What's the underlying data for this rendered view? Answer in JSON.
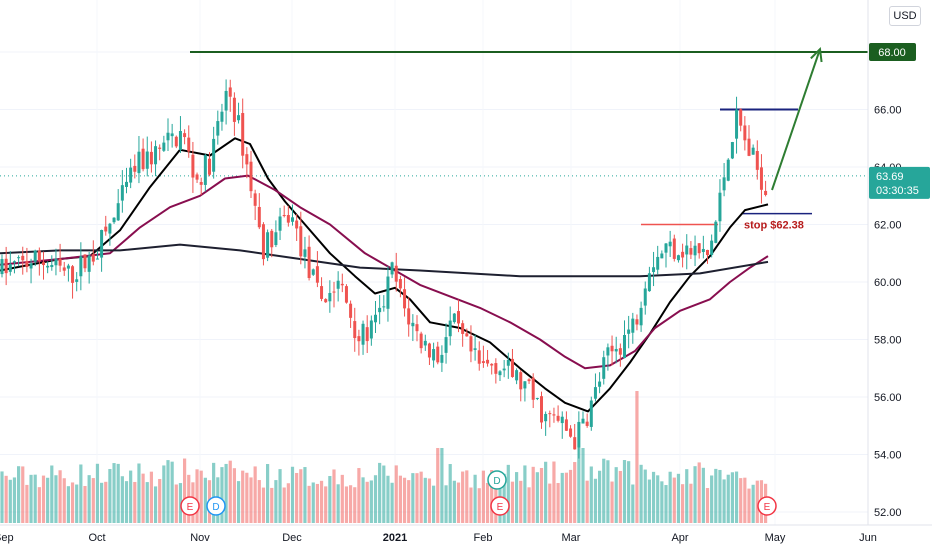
{
  "currency": "USD",
  "chart_data": {
    "type": "candlestick",
    "y_axis": {
      "range": [
        51.6,
        69.4
      ],
      "ticks": [
        "52.00",
        "54.00",
        "56.00",
        "58.00",
        "60.00",
        "62.00",
        "64.00",
        "66.00",
        "68.00"
      ]
    },
    "x_axis": {
      "ticks": [
        "Sep",
        "Oct",
        "Nov",
        "Dec",
        "2021",
        "Feb",
        "Mar",
        "Apr",
        "May",
        "Jun"
      ],
      "bold": [
        "2021"
      ]
    },
    "price_path": [
      [
        0,
        60.4
      ],
      [
        40,
        60.8
      ],
      [
        70,
        60.2
      ],
      [
        95,
        61.0
      ],
      [
        115,
        62.3
      ],
      [
        135,
        64.0
      ],
      [
        160,
        64.6
      ],
      [
        182,
        65.2
      ],
      [
        196,
        63.5
      ],
      [
        210,
        64.2
      ],
      [
        228,
        66.8
      ],
      [
        240,
        65.2
      ],
      [
        252,
        63.2
      ],
      [
        262,
        61.2
      ],
      [
        275,
        61.6
      ],
      [
        290,
        62.4
      ],
      [
        305,
        60.8
      ],
      [
        320,
        59.4
      ],
      [
        340,
        59.9
      ],
      [
        360,
        58.0
      ],
      [
        378,
        58.6
      ],
      [
        392,
        60.4
      ],
      [
        405,
        59.0
      ],
      [
        420,
        58.0
      ],
      [
        438,
        57.4
      ],
      [
        452,
        58.6
      ],
      [
        465,
        57.8
      ],
      [
        480,
        57.0
      ],
      [
        495,
        57.2
      ],
      [
        512,
        56.8
      ],
      [
        528,
        56.2
      ],
      [
        545,
        55.3
      ],
      [
        560,
        55.1
      ],
      [
        575,
        54.5
      ],
      [
        590,
        55.6
      ],
      [
        605,
        57.2
      ],
      [
        620,
        57.9
      ],
      [
        635,
        58.6
      ],
      [
        648,
        60.6
      ],
      [
        665,
        61.2
      ],
      [
        680,
        61.2
      ],
      [
        695,
        61.0
      ],
      [
        708,
        60.9
      ],
      [
        718,
        62.4
      ],
      [
        728,
        64.6
      ],
      [
        737,
        65.7
      ],
      [
        748,
        64.6
      ],
      [
        758,
        63.9
      ],
      [
        768,
        63.1
      ]
    ],
    "volume_path": [
      [
        0,
        0.5
      ],
      [
        100,
        0.55
      ],
      [
        200,
        0.6
      ],
      [
        300,
        0.5
      ],
      [
        400,
        0.55
      ],
      [
        500,
        0.5
      ],
      [
        600,
        0.6
      ],
      [
        700,
        0.55
      ],
      [
        768,
        0.45
      ]
    ],
    "moving_averages": [
      {
        "color": "#000000",
        "points": [
          [
            0,
            60.4
          ],
          [
            60,
            60.8
          ],
          [
            90,
            60.9
          ],
          [
            120,
            61.8
          ],
          [
            150,
            63.3
          ],
          [
            180,
            64.6
          ],
          [
            210,
            64.4
          ],
          [
            235,
            65.0
          ],
          [
            250,
            64.8
          ],
          [
            268,
            63.6
          ],
          [
            285,
            62.8
          ],
          [
            305,
            62.0
          ],
          [
            330,
            61.0
          ],
          [
            355,
            60.2
          ],
          [
            375,
            59.6
          ],
          [
            395,
            59.8
          ],
          [
            410,
            59.4
          ],
          [
            430,
            58.6
          ],
          [
            460,
            58.4
          ],
          [
            490,
            57.9
          ],
          [
            520,
            57.0
          ],
          [
            545,
            56.3
          ],
          [
            565,
            55.8
          ],
          [
            588,
            55.5
          ],
          [
            610,
            56.3
          ],
          [
            630,
            57.2
          ],
          [
            650,
            58.2
          ],
          [
            670,
            59.3
          ],
          [
            690,
            60.2
          ],
          [
            710,
            60.9
          ],
          [
            730,
            61.9
          ],
          [
            745,
            62.5
          ],
          [
            768,
            62.7
          ]
        ]
      },
      {
        "color": "#880e4f",
        "points": [
          [
            0,
            60.6
          ],
          [
            60,
            60.8
          ],
          [
            110,
            61.0
          ],
          [
            140,
            61.9
          ],
          [
            170,
            62.6
          ],
          [
            200,
            63.0
          ],
          [
            225,
            63.6
          ],
          [
            248,
            63.7
          ],
          [
            275,
            63.2
          ],
          [
            300,
            62.6
          ],
          [
            330,
            62.0
          ],
          [
            365,
            61.0
          ],
          [
            395,
            60.4
          ],
          [
            420,
            59.9
          ],
          [
            450,
            59.5
          ],
          [
            480,
            59.1
          ],
          [
            510,
            58.6
          ],
          [
            540,
            58.0
          ],
          [
            565,
            57.4
          ],
          [
            585,
            57.0
          ],
          [
            610,
            57.1
          ],
          [
            635,
            57.6
          ],
          [
            655,
            58.4
          ],
          [
            680,
            59.0
          ],
          [
            710,
            59.4
          ],
          [
            730,
            60.0
          ],
          [
            750,
            60.5
          ],
          [
            768,
            60.9
          ]
        ]
      },
      {
        "color": "#1e2030",
        "points": [
          [
            0,
            61.0
          ],
          [
            60,
            61.1
          ],
          [
            120,
            61.1
          ],
          [
            180,
            61.3
          ],
          [
            240,
            61.1
          ],
          [
            300,
            60.8
          ],
          [
            360,
            60.5
          ],
          [
            420,
            60.4
          ],
          [
            470,
            60.3
          ],
          [
            520,
            60.2
          ],
          [
            580,
            60.2
          ],
          [
            640,
            60.2
          ],
          [
            700,
            60.3
          ],
          [
            768,
            60.7
          ]
        ]
      }
    ],
    "price_labels": [
      {
        "text": "68.00",
        "value": 68.0,
        "bg": "#1b5e20",
        "color": "#ffffff"
      },
      {
        "text": "63.69",
        "value": 63.69,
        "bg": "#26a69a",
        "color": "#ffffff"
      },
      {
        "text": "03:30:35",
        "value": 63.69,
        "bg": "#26a69a",
        "color": "#ffffff"
      }
    ],
    "annotations": {
      "resistance": {
        "value": 68.0,
        "color": "#1b5e20"
      },
      "recent_high": {
        "value": 66.0,
        "color": "#1a237e"
      },
      "breakout": {
        "value": 62.0,
        "color": "#ef5350"
      },
      "stop": {
        "value": 62.38,
        "label": "stop $62.38",
        "color": "#b71c1c"
      },
      "current_price": {
        "value": 63.69,
        "color": "#26a69a"
      },
      "arrow_target": 68.1
    },
    "events": [
      {
        "text": "E",
        "x": 190,
        "row": "bottom",
        "color": "#f23645"
      },
      {
        "text": "D",
        "x": 216,
        "row": "bottom",
        "color": "#2196f3"
      },
      {
        "text": "D",
        "x": 497,
        "row": "top",
        "color": "#26a69a"
      },
      {
        "text": "E",
        "x": 500,
        "row": "bottom",
        "color": "#f23645"
      },
      {
        "text": "E",
        "x": 767,
        "row": "bottom",
        "color": "#f23645"
      }
    ]
  }
}
